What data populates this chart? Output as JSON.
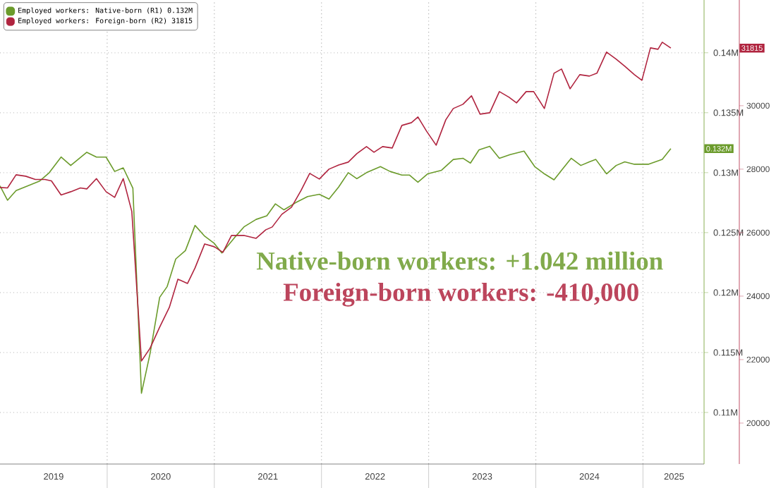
{
  "chart_data": {
    "type": "line",
    "series": [
      {
        "name": "Employed workers: Native-born (R1) 0.132M",
        "color": "#6b9b2b",
        "axis": "y",
        "x": [
          2019.0,
          2019.07,
          2019.15,
          2019.26,
          2019.37,
          2019.46,
          2019.57,
          2019.66,
          2019.81,
          2019.9,
          2019.99,
          2020.07,
          2020.15,
          2020.24,
          2020.32,
          2020.4,
          2020.49,
          2020.56,
          2020.64,
          2020.73,
          2020.82,
          2020.91,
          2021.0,
          2021.07,
          2021.19,
          2021.28,
          2021.39,
          2021.49,
          2021.57,
          2021.65,
          2021.76,
          2021.87,
          2021.98,
          2022.07,
          2022.16,
          2022.25,
          2022.33,
          2022.42,
          2022.55,
          2022.64,
          2022.75,
          2022.82,
          2022.9,
          2022.99,
          2023.12,
          2023.23,
          2023.32,
          2023.39,
          2023.47,
          2023.57,
          2023.66,
          2023.76,
          2023.89,
          2023.99,
          2024.08,
          2024.17,
          2024.24,
          2024.33,
          2024.42,
          2024.5,
          2024.56,
          2024.66,
          2024.75,
          2024.83,
          2024.92,
          2025.05,
          2025.18,
          2025.26
        ],
        "values": [
          0.1289,
          0.1277,
          0.1285,
          0.1289,
          0.1293,
          0.13,
          0.1313,
          0.1306,
          0.1317,
          0.1313,
          0.1313,
          0.1301,
          0.1304,
          0.1287,
          0.1116,
          0.1149,
          0.1196,
          0.1205,
          0.1228,
          0.1235,
          0.1256,
          0.1247,
          0.1241,
          0.1233,
          0.1246,
          0.1255,
          0.1261,
          0.1264,
          0.1274,
          0.1269,
          0.1275,
          0.128,
          0.1282,
          0.1278,
          0.1288,
          0.13,
          0.1295,
          0.13,
          0.1305,
          0.1301,
          0.1298,
          0.1298,
          0.1292,
          0.1299,
          0.1302,
          0.1311,
          0.1312,
          0.1308,
          0.1319,
          0.1322,
          0.1312,
          0.1315,
          0.1318,
          0.1305,
          0.1299,
          0.1294,
          0.1302,
          0.1312,
          0.1306,
          0.1309,
          0.1311,
          0.1299,
          0.1306,
          0.1309,
          0.1307,
          0.1307,
          0.1311,
          0.132
        ]
      },
      {
        "name": "Employed workers: Foreign-born (R2) 31815",
        "color": "#b0243f",
        "axis": "y2",
        "x": [
          2019.0,
          2019.07,
          2019.15,
          2019.24,
          2019.33,
          2019.42,
          2019.48,
          2019.57,
          2019.66,
          2019.75,
          2019.81,
          2019.9,
          2019.99,
          2020.07,
          2020.15,
          2020.23,
          2020.32,
          2020.4,
          2020.49,
          2020.58,
          2020.66,
          2020.75,
          2020.82,
          2020.91,
          2021.0,
          2021.08,
          2021.16,
          2021.28,
          2021.39,
          2021.48,
          2021.54,
          2021.63,
          2021.72,
          2021.81,
          2021.89,
          2021.98,
          2022.07,
          2022.16,
          2022.25,
          2022.33,
          2022.42,
          2022.49,
          2022.57,
          2022.66,
          2022.75,
          2022.84,
          2022.9,
          2022.98,
          2023.07,
          2023.16,
          2023.23,
          2023.32,
          2023.4,
          2023.48,
          2023.57,
          2023.66,
          2023.75,
          2023.82,
          2023.91,
          2023.98,
          2024.08,
          2024.17,
          2024.24,
          2024.32,
          2024.41,
          2024.5,
          2024.57,
          2024.66,
          2024.75,
          2024.83,
          2024.92,
          2024.99,
          2025.07,
          2025.14,
          2025.18,
          2025.26
        ],
        "values": [
          27422,
          27409,
          27822,
          27778,
          27676,
          27676,
          27631,
          27187,
          27289,
          27409,
          27378,
          27702,
          27289,
          27111,
          27702,
          26667,
          21956,
          22356,
          23022,
          23644,
          24533,
          24400,
          24889,
          25644,
          25556,
          25378,
          25911,
          25911,
          25822,
          26089,
          26178,
          26578,
          26800,
          27333,
          27867,
          27689,
          28000,
          28133,
          28222,
          28489,
          28711,
          28533,
          28711,
          28667,
          29378,
          29467,
          29644,
          29200,
          28756,
          29556,
          29911,
          30044,
          30311,
          29733,
          29778,
          30444,
          30267,
          30089,
          30444,
          30444,
          29911,
          31022,
          31156,
          30533,
          30978,
          30933,
          31022,
          31689,
          31467,
          31244,
          30978,
          30800,
          31822,
          31778,
          32000,
          31815
        ]
      }
    ],
    "xlim": [
      2019.0,
      2025.57
    ],
    "xticks": [
      {
        "value": 2019.5,
        "label": "2019"
      },
      {
        "value": 2020,
        "label": null
      },
      {
        "value": 2020.5,
        "label": "2020"
      },
      {
        "value": 2021,
        "label": null
      },
      {
        "value": 2021.5,
        "label": "2021"
      },
      {
        "value": 2022,
        "label": null
      },
      {
        "value": 2022.5,
        "label": "2022"
      },
      {
        "value": 2023,
        "label": null
      },
      {
        "value": 2023.5,
        "label": "2023"
      },
      {
        "value": 2024,
        "label": null
      },
      {
        "value": 2024.5,
        "label": "2024"
      },
      {
        "value": 2025,
        "label": null
      },
      {
        "value": 2025.29,
        "label": "2025"
      }
    ],
    "ylim": [
      0.1057,
      0.1444
    ],
    "yticks": [
      {
        "value": 0.11,
        "label": "0.11M"
      },
      {
        "value": 0.115,
        "label": "0.115M"
      },
      {
        "value": 0.12,
        "label": "0.12M"
      },
      {
        "value": 0.125,
        "label": "0.125M"
      },
      {
        "value": 0.13,
        "label": "0.13M"
      },
      {
        "value": 0.135,
        "label": "0.135M"
      },
      {
        "value": 0.14,
        "label": "0.14M"
      }
    ],
    "y2lim": [
      18710,
      33330
    ],
    "y2ticks": [
      20000,
      22000,
      24000,
      26000,
      28000,
      30000
    ],
    "grid": true,
    "legend": "top left",
    "annotations": [
      "Native-born workers: +1.042 million",
      "Foreign-born workers: -410,000",
      "0.132M",
      "31815"
    ]
  }
}
